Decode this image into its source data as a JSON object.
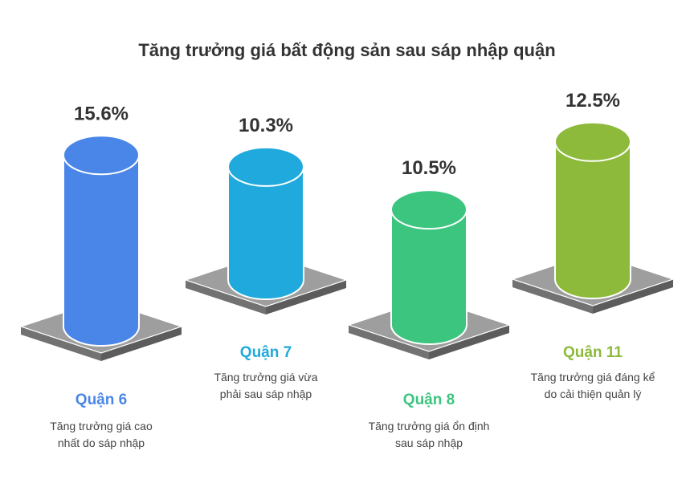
{
  "chart_data": {
    "type": "bar",
    "title": "Tăng trưởng giá bất động sản sau sáp nhập quận",
    "categories": [
      "Quận 6",
      "Quận 7",
      "Quận 8",
      "Quận 11"
    ],
    "values": [
      15.6,
      10.3,
      10.5,
      12.5
    ],
    "value_labels": [
      "15.6%",
      "10.3%",
      "10.5%",
      "12.5%"
    ],
    "descriptions": [
      [
        "Tăng trưởng giá cao",
        "nhất do sáp nhập"
      ],
      [
        "Tăng trưởng giá vừa",
        "phải sau sáp nhập"
      ],
      [
        "Tăng trưởng giá ổn định",
        "sau sáp nhập"
      ],
      [
        "Tăng trưởng giá đáng kể",
        "do cải thiện quản lý"
      ]
    ],
    "colors": [
      "#4a86e8",
      "#1fa9dc",
      "#3cc57f",
      "#8dba3a"
    ],
    "base_color": "#9e9e9e"
  }
}
